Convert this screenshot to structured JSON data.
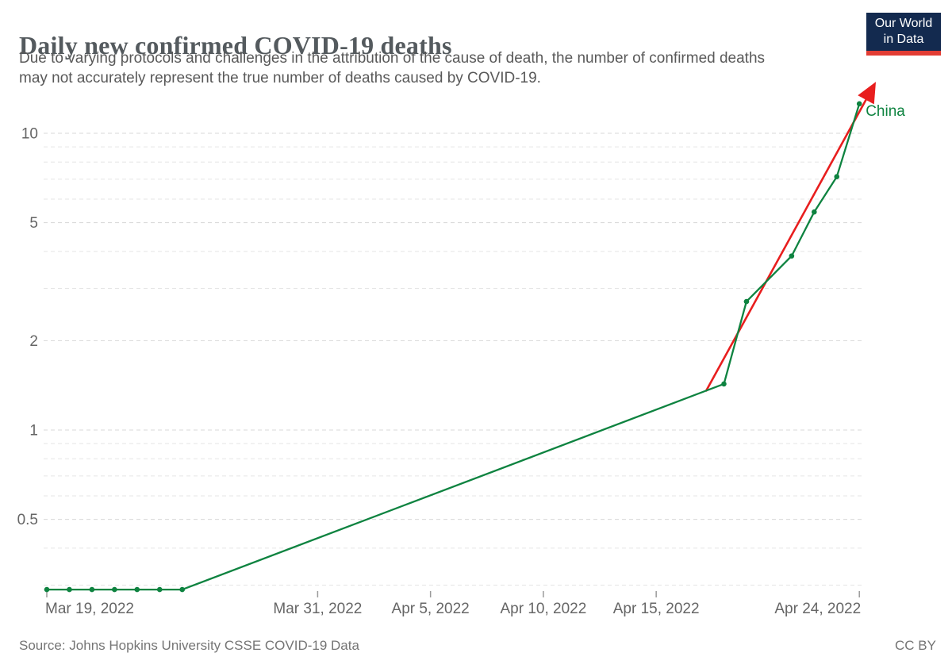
{
  "header": {
    "title": "Daily new confirmed COVID-19 deaths",
    "subtitle_line1": "Due to varying protocols and challenges in the attribution of the cause of death, the number of confirmed deaths",
    "subtitle_line2": "may not accurately represent the true number of deaths caused by COVID-19.",
    "logo": {
      "line1": "Our World",
      "line2": "in Data",
      "bg_color": "#132a4f",
      "bar_color": "#e23d34"
    }
  },
  "footer": {
    "source": "Source: Johns Hopkins University CSSE COVID-19 Data",
    "license": "CC BY"
  },
  "chart_data": {
    "type": "line",
    "title": "Daily new confirmed COVID-19 deaths",
    "y_scale": "log",
    "ylim": [
      0.27,
      14.5
    ],
    "xlabel": "",
    "ylabel": "",
    "grid": true,
    "y_tick_labels": [
      {
        "value": 10,
        "label": "10"
      },
      {
        "value": 5,
        "label": "5"
      },
      {
        "value": 2,
        "label": "2"
      },
      {
        "value": 1,
        "label": "1"
      },
      {
        "value": 0.5,
        "label": "0.5"
      }
    ],
    "y_gridlines": [
      10,
      9,
      8,
      7,
      6,
      5,
      4,
      3,
      2,
      1,
      0.9,
      0.8,
      0.7,
      0.6,
      0.5,
      0.4,
      0.3
    ],
    "x_ticks": [
      {
        "day": 0,
        "label": "Mar 19, 2022",
        "anchor": "start"
      },
      {
        "day": 12,
        "label": "Mar 31, 2022",
        "anchor": "middle"
      },
      {
        "day": 17,
        "label": "Apr 5, 2022",
        "anchor": "middle"
      },
      {
        "day": 22,
        "label": "Apr 10, 2022",
        "anchor": "middle"
      },
      {
        "day": 27,
        "label": "Apr 15, 2022",
        "anchor": "middle"
      },
      {
        "day": 36,
        "label": "Apr 24, 2022",
        "anchor": "end"
      }
    ],
    "series": [
      {
        "name": "China",
        "color": "#0e8340",
        "points": [
          {
            "date": "Mar 19, 2022",
            "day": 0,
            "value": 0.29
          },
          {
            "date": "Mar 20, 2022",
            "day": 1,
            "value": 0.29
          },
          {
            "date": "Mar 21, 2022",
            "day": 2,
            "value": 0.29
          },
          {
            "date": "Mar 22, 2022",
            "day": 3,
            "value": 0.29
          },
          {
            "date": "Mar 23, 2022",
            "day": 4,
            "value": 0.29
          },
          {
            "date": "Mar 24, 2022",
            "day": 5,
            "value": 0.29
          },
          {
            "date": "Mar 25, 2022",
            "day": 6,
            "value": 0.29
          },
          {
            "date": "Apr 18, 2022",
            "day": 30,
            "value": 1.43
          },
          {
            "date": "Apr 19, 2022",
            "day": 31,
            "value": 2.71
          },
          {
            "date": "Apr 21, 2022",
            "day": 33,
            "value": 3.86
          },
          {
            "date": "Apr 22, 2022",
            "day": 34,
            "value": 5.43
          },
          {
            "date": "Apr 23, 2022",
            "day": 35,
            "value": 7.14
          },
          {
            "date": "Apr 24, 2022",
            "day": 36,
            "value": 12.57
          }
        ]
      }
    ],
    "annotation_arrow": {
      "color": "#e81e1e",
      "from": {
        "day": 29.2,
        "value": 1.35
      },
      "to": {
        "day": 36.6,
        "value": 14.3
      }
    },
    "legend_position": "end-of-line-label",
    "axis_label_color": "#666666",
    "gridline_major_color": "#d8d8d8",
    "gridline_minor_color": "#e5e5e5",
    "tick_mark_color": "#9a9a9a"
  }
}
